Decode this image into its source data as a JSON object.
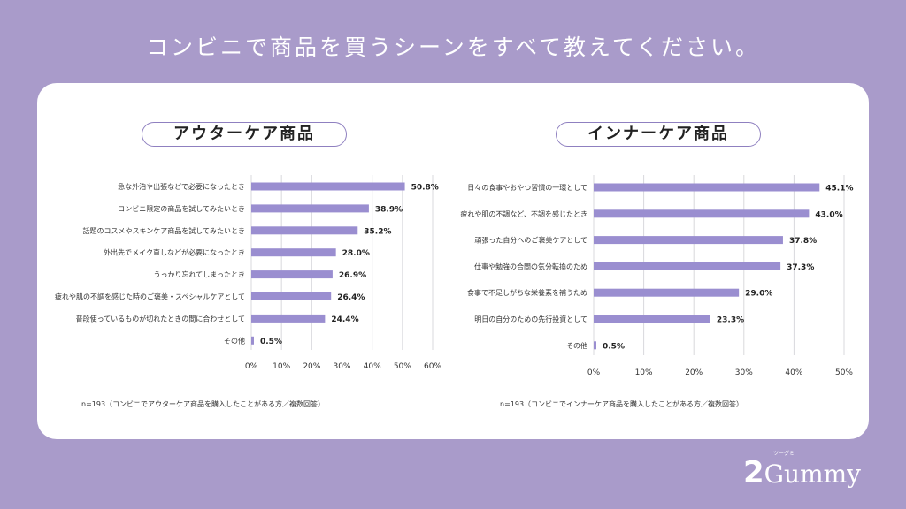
{
  "title": "コンビニで商品を買うシーンをすべて教えてください。",
  "colors": {
    "background": "#a99bca",
    "bar": "#9a8ed0",
    "grid": "#d8d8dc"
  },
  "chart_data": [
    {
      "type": "bar",
      "orientation": "horizontal",
      "title": "アウターケア商品",
      "categories": [
        "急な外泊や出張などで必要になったとき",
        "コンビニ限定の商品を試してみたいとき",
        "話題のコスメやスキンケア商品を試してみたいとき",
        "外出先でメイク直しなどが必要になったとき",
        "うっかり忘れてしまったとき",
        "疲れや肌の不調を感じた時のご褒美・スペシャルケアとして",
        "普段使っているものが切れたときの間に合わせとして",
        "その他"
      ],
      "values": [
        50.8,
        38.9,
        35.2,
        28.0,
        26.9,
        26.4,
        24.4,
        0.5
      ],
      "value_labels": [
        "50.8%",
        "38.9%",
        "35.2%",
        "28.0%",
        "26.9%",
        "26.4%",
        "24.4%",
        "0.5%"
      ],
      "xlim": [
        0,
        60
      ],
      "ticks": [
        "0%",
        "10%",
        "20%",
        "30%",
        "40%",
        "50%",
        "60%"
      ],
      "grid": true,
      "note": "n=193（コンビニでアウターケア商品を購入したことがある方／複数回答）"
    },
    {
      "type": "bar",
      "orientation": "horizontal",
      "title": "インナーケア商品",
      "categories": [
        "日々の食事やおやつ習慣の一環として",
        "疲れや肌の不調など、不調を感じたとき",
        "頑張った自分へのご褒美ケアとして",
        "仕事や勉強の合間の気分転換のため",
        "食事で不足しがちな栄養素を補うため",
        "明日の自分のための先行投資として",
        "その他"
      ],
      "values": [
        45.1,
        43.0,
        37.8,
        37.3,
        29.0,
        23.3,
        0.5
      ],
      "value_labels": [
        "45.1%",
        "43.0%",
        "37.8%",
        "37.3%",
        "29.0%",
        "23.3%",
        "0.5%"
      ],
      "xlim": [
        0,
        50
      ],
      "ticks": [
        "0%",
        "10%",
        "20%",
        "30%",
        "40%",
        "50%"
      ],
      "grid": true,
      "note": "n=193（コンビニでインナーケア商品を購入したことがある方／複数回答）"
    }
  ],
  "logo": {
    "number": "2",
    "name": "Gummy",
    "kana": "ツーグミ"
  }
}
